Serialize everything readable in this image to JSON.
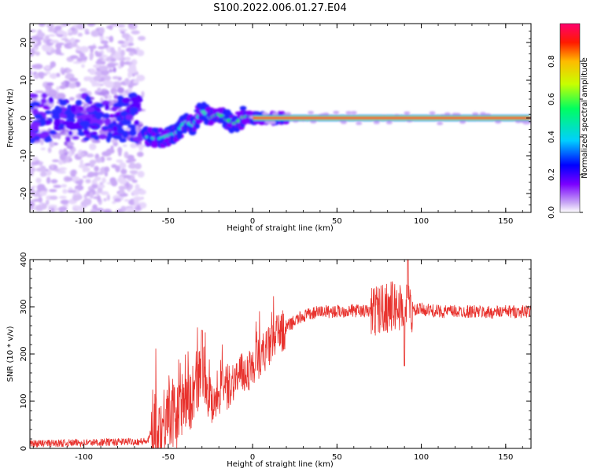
{
  "title": "S100.2022.006.01.27.E04",
  "chart_data": [
    {
      "type": "heatmap",
      "title": "S100.2022.006.01.27.E04",
      "xlabel": "Height of straight line (km)",
      "ylabel": "Frequency (Hz)",
      "xlim": [
        -132,
        165
      ],
      "ylim": [
        -25,
        25
      ],
      "xticks": [
        -100,
        -50,
        0,
        50,
        100,
        150
      ],
      "yticks": [
        -20,
        -10,
        0,
        10,
        20
      ],
      "colorbar": {
        "label": "Normalized spectral amplitude",
        "range": [
          0,
          1
        ],
        "ticks": [
          0.0,
          0.2,
          0.4,
          0.6,
          0.8
        ],
        "colors": [
          "#ffffff",
          "#c9a9f5",
          "#7a00ff",
          "#0000ff",
          "#00cfff",
          "#00ff60",
          "#c8ff00",
          "#ffbb00",
          "#ff1a00",
          "#ff006e"
        ]
      },
      "ridge": {
        "x": [
          -63,
          -55,
          -45,
          -40,
          -35,
          -30,
          -25,
          -20,
          -15,
          -10,
          -5,
          0,
          20,
          165
        ],
        "y": [
          -5,
          -5.5,
          -4,
          -1,
          -2,
          2,
          0,
          1,
          -0.5,
          -1.5,
          0.5,
          0,
          0,
          0
        ]
      }
    },
    {
      "type": "line",
      "xlabel": "Height of straight line (km)",
      "ylabel": "SNR (10 * v/v)",
      "xlim": [
        -132,
        165
      ],
      "ylim": [
        0,
        400
      ],
      "xticks": [
        -100,
        -50,
        0,
        50,
        100,
        150
      ],
      "yticks": [
        0,
        100,
        200,
        300,
        400
      ],
      "color": "#e8322d",
      "series": [
        {
          "x": [
            -132,
            -100,
            -62,
            -58,
            -55,
            -50,
            -45,
            -40,
            -35,
            -30,
            -25,
            -20,
            -15,
            -10,
            -5,
            0,
            5,
            10,
            15,
            20,
            25,
            30,
            40,
            50,
            60,
            70,
            80,
            90,
            95,
            100,
            110,
            120,
            130,
            140,
            150,
            160,
            165
          ],
          "y": [
            10,
            12,
            15,
            60,
            30,
            90,
            60,
            110,
            100,
            180,
            100,
            120,
            130,
            150,
            160,
            170,
            200,
            215,
            240,
            255,
            270,
            280,
            290,
            290,
            292,
            290,
            300,
            300,
            290,
            295,
            290,
            290,
            290,
            288,
            290,
            290,
            292
          ]
        }
      ]
    }
  ]
}
